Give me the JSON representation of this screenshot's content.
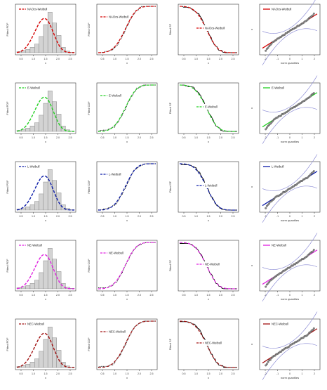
{
  "figure": {
    "panel_columns": [
      {
        "ylabel": "Fitted PDF",
        "xlabel": "x",
        "xticks": [
          "0.5",
          "1.0",
          "1.5",
          "2.0",
          "2.5"
        ]
      },
      {
        "ylabel": "Fitted CDF",
        "xlabel": "x",
        "xticks": [
          "0.5",
          "1.0",
          "1.5",
          "2.0",
          "2.5"
        ]
      },
      {
        "ylabel": "Fitted SF",
        "xlabel": "x",
        "xticks": [
          "0.5",
          "1.0",
          "1.5",
          "2.0",
          "2.5"
        ]
      },
      {
        "ylabel": "x",
        "xlabel": "norm quantiles",
        "xticks": [
          "-2",
          "-1",
          "0",
          "1",
          "2"
        ]
      }
    ]
  },
  "chart_data": [
    {
      "type": "area",
      "row_label": "NAOcs-Weibull",
      "color": "#d40000",
      "panels": [
        {
          "kind": "pdf",
          "legend": "NAOcs-Weibull",
          "xlim": [
            0.2,
            2.8
          ],
          "bins": [
            0.2,
            0.4,
            0.6,
            0.8,
            1.0,
            1.2,
            1.4,
            1.6,
            1.8,
            2.0,
            2.2,
            2.4,
            2.6,
            2.8
          ],
          "histogram": [
            0.02,
            0.04,
            0.06,
            0.1,
            0.16,
            0.3,
            0.52,
            0.75,
            0.55,
            0.32,
            0.1,
            0.03,
            0.01
          ],
          "curve": {
            "shape": 4.0,
            "scale": 1.55
          }
        },
        {
          "kind": "cdf",
          "legend": "NAOcs-Weibull",
          "xlim": [
            0.2,
            2.8
          ],
          "ylim": [
            0,
            1
          ]
        },
        {
          "kind": "sf",
          "legend": "NAOcs-Weibull",
          "xlim": [
            0.2,
            2.8
          ],
          "ylim": [
            0,
            1
          ]
        },
        {
          "kind": "qq",
          "legend": "NAOcs-Weibull",
          "xlim": [
            -2.5,
            2.5
          ]
        }
      ]
    },
    {
      "type": "area",
      "row_label": "E-Weibull",
      "color": "#22d022",
      "panels": [
        {
          "kind": "pdf",
          "legend": "E-Weibull",
          "xlim": [
            0.2,
            2.8
          ],
          "bins": [
            0.2,
            0.4,
            0.6,
            0.8,
            1.0,
            1.2,
            1.4,
            1.6,
            1.8,
            2.0,
            2.2,
            2.4,
            2.6,
            2.8
          ],
          "histogram": [
            0.02,
            0.04,
            0.06,
            0.1,
            0.16,
            0.3,
            0.52,
            0.75,
            0.55,
            0.32,
            0.1,
            0.03,
            0.01
          ],
          "curve": {
            "shape": 4.0,
            "scale": 1.55
          }
        },
        {
          "kind": "cdf",
          "legend": "E-Weibull",
          "xlim": [
            0.2,
            2.8
          ],
          "ylim": [
            0,
            1
          ]
        },
        {
          "kind": "sf",
          "legend": "E-Weibull",
          "xlim": [
            0.2,
            2.8
          ],
          "ylim": [
            0,
            1
          ]
        },
        {
          "kind": "qq",
          "legend": "E-Weibull",
          "xlim": [
            -2.5,
            2.5
          ]
        }
      ]
    },
    {
      "type": "area",
      "row_label": "L-Weibull",
      "color": "#0a1aa8",
      "panels": [
        {
          "kind": "pdf",
          "legend": "L-Weibull",
          "xlim": [
            0.2,
            2.8
          ],
          "bins": [
            0.2,
            0.4,
            0.6,
            0.8,
            1.0,
            1.2,
            1.4,
            1.6,
            1.8,
            2.0,
            2.2,
            2.4,
            2.6,
            2.8
          ],
          "histogram": [
            0.02,
            0.04,
            0.06,
            0.1,
            0.16,
            0.3,
            0.52,
            0.75,
            0.55,
            0.32,
            0.1,
            0.03,
            0.01
          ],
          "curve": {
            "shape": 4.0,
            "scale": 1.55
          }
        },
        {
          "kind": "cdf",
          "legend": "L-Weibull",
          "xlim": [
            0.2,
            2.8
          ],
          "ylim": [
            0,
            1
          ]
        },
        {
          "kind": "sf",
          "legend": "L-Weibull",
          "xlim": [
            0.2,
            2.8
          ],
          "ylim": [
            0,
            1
          ]
        },
        {
          "kind": "qq",
          "legend": "L-Weibull",
          "xlim": [
            -2.5,
            2.5
          ]
        }
      ]
    },
    {
      "type": "area",
      "row_label": "NE-Weibull",
      "color": "#e020e0",
      "panels": [
        {
          "kind": "pdf",
          "legend": "NE-Weibull",
          "xlim": [
            0.2,
            2.8
          ],
          "bins": [
            0.2,
            0.4,
            0.6,
            0.8,
            1.0,
            1.2,
            1.4,
            1.6,
            1.8,
            2.0,
            2.2,
            2.4,
            2.6,
            2.8
          ],
          "histogram": [
            0.02,
            0.04,
            0.06,
            0.1,
            0.16,
            0.3,
            0.52,
            0.75,
            0.55,
            0.32,
            0.1,
            0.03,
            0.01
          ],
          "curve": {
            "shape": 4.0,
            "scale": 1.55
          }
        },
        {
          "kind": "cdf",
          "legend": "NE-Weibull",
          "xlim": [
            0.2,
            2.8
          ],
          "ylim": [
            0,
            1
          ]
        },
        {
          "kind": "sf",
          "legend": "NE-Weibull",
          "xlim": [
            0.2,
            2.8
          ],
          "ylim": [
            0,
            1
          ]
        },
        {
          "kind": "qq",
          "legend": "NE-Weibull",
          "xlim": [
            -2.5,
            2.5
          ]
        }
      ]
    },
    {
      "type": "area",
      "row_label": "NEC-Weibull",
      "color": "#a01010",
      "panels": [
        {
          "kind": "pdf",
          "legend": "NEC-Weibull",
          "xlim": [
            0.2,
            2.8
          ],
          "bins": [
            0.2,
            0.4,
            0.6,
            0.8,
            1.0,
            1.2,
            1.4,
            1.6,
            1.8,
            2.0,
            2.2,
            2.4,
            2.6,
            2.8
          ],
          "histogram": [
            0.02,
            0.04,
            0.06,
            0.1,
            0.16,
            0.3,
            0.52,
            0.75,
            0.55,
            0.32,
            0.1,
            0.03,
            0.01
          ],
          "curve": {
            "shape": 4.0,
            "scale": 1.55
          }
        },
        {
          "kind": "cdf",
          "legend": "NEC-Weibull",
          "xlim": [
            0.2,
            2.8
          ],
          "ylim": [
            0,
            1
          ]
        },
        {
          "kind": "sf",
          "legend": "NEC-Weibull",
          "xlim": [
            0.2,
            2.8
          ],
          "ylim": [
            0,
            1
          ]
        },
        {
          "kind": "qq",
          "legend": "NEC-Weibull",
          "xlim": [
            -2.5,
            2.5
          ]
        }
      ]
    }
  ]
}
